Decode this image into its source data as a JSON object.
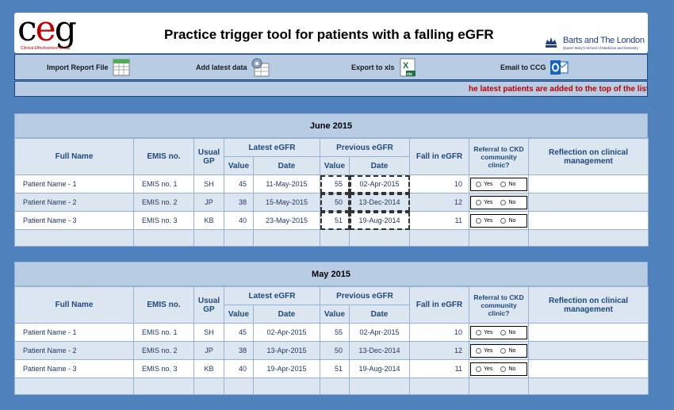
{
  "header": {
    "title": "Practice trigger tool for patients with a falling eGFR",
    "logo_c": "c",
    "logo_e": "e",
    "logo_g": "g",
    "logo_sub": "Clinical Effectiveness Group",
    "barts_name": "Barts and The London",
    "barts_sub": "Queen Mary's School of Medicine and Dentistry"
  },
  "toolbar": {
    "import": "Import Report File",
    "add": "Add latest data",
    "export": "Export to xls",
    "email": "Email to CCG"
  },
  "ticker": "he latest patients are added to the top of the list",
  "columns": {
    "full_name": "Full Name",
    "emis": "EMIS no.",
    "gp": "Usual GP",
    "latest": "Latest eGFR",
    "previous": "Previous eGFR",
    "value": "Value",
    "date": "Date",
    "fall": "Fall in eGFR",
    "referral": "Referral to CKD community clinic?",
    "reflection": "Reflection on clinical management"
  },
  "radio": {
    "yes": "Yes",
    "no": "No"
  },
  "sections": [
    {
      "title": "June 2015",
      "rows": [
        {
          "name": "Patient Name - 1",
          "emis": "EMIS no. 1",
          "gp": "SH",
          "lv": "45",
          "ld": "11-May-2015",
          "pv": "55",
          "pd": "02-Apr-2015",
          "fall": "10"
        },
        {
          "name": "Patient Name - 2",
          "emis": "EMIS no. 2",
          "gp": "JP",
          "lv": "38",
          "ld": "15-May-2015",
          "pv": "50",
          "pd": "13-Dec-2014",
          "fall": "12"
        },
        {
          "name": "Patient Name - 3",
          "emis": "EMIS no. 3",
          "gp": "KB",
          "lv": "40",
          "ld": "23-May-2015",
          "pv": "51",
          "pd": "19-Aug-2014",
          "fall": "11"
        }
      ]
    },
    {
      "title": "May 2015",
      "rows": [
        {
          "name": "Patient Name - 1",
          "emis": "EMIS no. 1",
          "gp": "SH",
          "lv": "45",
          "ld": "02-Apr-2015",
          "pv": "55",
          "pd": "02-Apr-2015",
          "fall": "10"
        },
        {
          "name": "Patient Name - 2",
          "emis": "EMIS no. 2",
          "gp": "JP",
          "lv": "38",
          "ld": "13-Apr-2015",
          "pv": "50",
          "pd": "13-Dec-2014",
          "fall": "12"
        },
        {
          "name": "Patient Name - 3",
          "emis": "EMIS no. 3",
          "gp": "KB",
          "lv": "40",
          "ld": "19-Apr-2015",
          "pv": "51",
          "pd": "19-Aug-2014",
          "fall": "11"
        }
      ]
    }
  ]
}
